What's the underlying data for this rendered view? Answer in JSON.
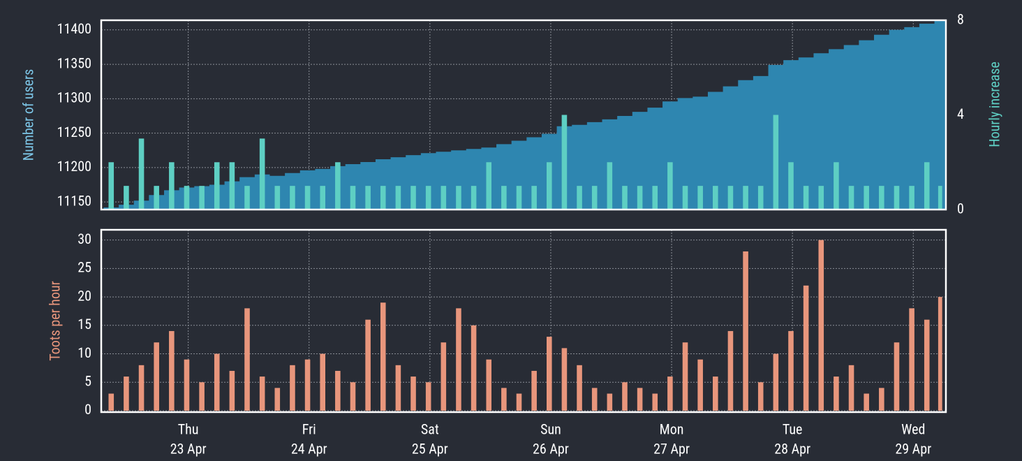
{
  "chart_data": [
    {
      "type": "combo",
      "x": [
        -0.7,
        -0.575,
        -0.45,
        -0.325,
        -0.2,
        -0.075,
        0.05,
        0.175,
        0.3,
        0.425,
        0.55,
        0.675,
        0.8,
        0.925,
        1.05,
        1.175,
        1.3,
        1.425,
        1.55,
        1.675,
        1.8,
        1.925,
        2.05,
        2.175,
        2.3,
        2.425,
        2.55,
        2.675,
        2.8,
        2.925,
        3.05,
        3.175,
        3.3,
        3.425,
        3.55,
        3.675,
        3.8,
        3.925,
        4.05,
        4.175,
        4.3,
        4.425,
        4.55,
        4.675,
        4.8,
        4.925,
        5.05,
        5.175,
        5.3,
        5.425,
        5.55,
        5.675,
        5.8,
        5.925,
        6.05,
        6.175
      ],
      "xlim": [
        -0.72,
        6.27
      ],
      "y_label": "Number of users",
      "y2_label": "Hourly increase",
      "ylim": [
        11139,
        11414
      ],
      "yticks": [
        11150,
        11200,
        11250,
        11300,
        11350,
        11400
      ],
      "y2lim": [
        0,
        8
      ],
      "y2ticks": [
        0,
        4,
        8
      ],
      "grid": true,
      "series": [
        {
          "name": "Number of users",
          "type": "area",
          "color": "#2e86b0",
          "axis": "y",
          "values": [
            11142,
            11146,
            11152,
            11160,
            11167,
            11171,
            11173,
            11175,
            11180,
            11186,
            11190,
            11188,
            11192,
            11196,
            11198,
            11202,
            11205,
            11208,
            11212,
            11215,
            11218,
            11221,
            11223,
            11225,
            11227,
            11229,
            11234,
            11239,
            11244,
            11249,
            11260,
            11262,
            11266,
            11270,
            11275,
            11281,
            11287,
            11296,
            11301,
            11303,
            11310,
            11318,
            11327,
            11333,
            11349,
            11356,
            11360,
            11366,
            11372,
            11378,
            11385,
            11393,
            11400,
            11404,
            11409,
            11413
          ]
        },
        {
          "name": "Hourly increase",
          "type": "bar",
          "color": "#5ecfc3",
          "axis": "y2",
          "values": [
            2,
            1,
            3,
            1,
            2,
            1,
            1,
            2,
            2,
            1,
            3,
            1,
            1,
            1,
            1,
            2,
            1,
            1,
            1,
            1,
            1,
            1,
            1,
            1,
            1,
            2,
            1,
            1,
            1,
            2,
            4,
            1,
            1,
            2,
            1,
            1,
            1,
            2,
            1,
            1,
            1,
            1,
            1,
            1,
            4,
            2,
            1,
            1,
            2,
            1,
            1,
            1,
            1,
            1,
            2,
            1
          ]
        }
      ]
    },
    {
      "type": "bar",
      "x": [
        -0.7,
        -0.575,
        -0.45,
        -0.325,
        -0.2,
        -0.075,
        0.05,
        0.175,
        0.3,
        0.425,
        0.55,
        0.675,
        0.8,
        0.925,
        1.05,
        1.175,
        1.3,
        1.425,
        1.55,
        1.675,
        1.8,
        1.925,
        2.05,
        2.175,
        2.3,
        2.425,
        2.55,
        2.675,
        2.8,
        2.925,
        3.05,
        3.175,
        3.3,
        3.425,
        3.55,
        3.675,
        3.8,
        3.925,
        4.05,
        4.175,
        4.3,
        4.425,
        4.55,
        4.675,
        4.8,
        4.925,
        5.05,
        5.175,
        5.3,
        5.425,
        5.55,
        5.675,
        5.8,
        5.925,
        6.05,
        6.175
      ],
      "xlim": [
        -0.72,
        6.27
      ],
      "xticks": [
        {
          "value": 0,
          "label": [
            "Thu",
            "23 Apr"
          ]
        },
        {
          "value": 1,
          "label": [
            "Fri",
            "24 Apr"
          ]
        },
        {
          "value": 2,
          "label": [
            "Sat",
            "25 Apr"
          ]
        },
        {
          "value": 3,
          "label": [
            "Sun",
            "26 Apr"
          ]
        },
        {
          "value": 4,
          "label": [
            "Mon",
            "27 Apr"
          ]
        },
        {
          "value": 5,
          "label": [
            "Tue",
            "28 Apr"
          ]
        },
        {
          "value": 6,
          "label": [
            "Wed",
            "29 Apr"
          ]
        }
      ],
      "y_label": "Toots per hour",
      "ylim": [
        -0.25,
        31.8
      ],
      "yticks": [
        0,
        5,
        10,
        15,
        20,
        25,
        30
      ],
      "grid": true,
      "color": "#e8967c",
      "values": [
        3,
        6,
        8,
        12,
        14,
        9,
        5,
        10,
        7,
        18,
        6,
        4,
        8,
        9,
        10,
        7,
        5,
        16,
        19,
        8,
        6,
        5,
        12,
        18,
        15,
        9,
        4,
        3,
        7,
        13,
        11,
        8,
        4,
        3,
        5,
        4,
        3,
        6,
        12,
        9,
        6,
        14,
        28,
        5,
        10,
        14,
        22,
        30,
        6,
        8,
        3,
        4,
        12,
        18,
        16,
        20
      ]
    }
  ]
}
